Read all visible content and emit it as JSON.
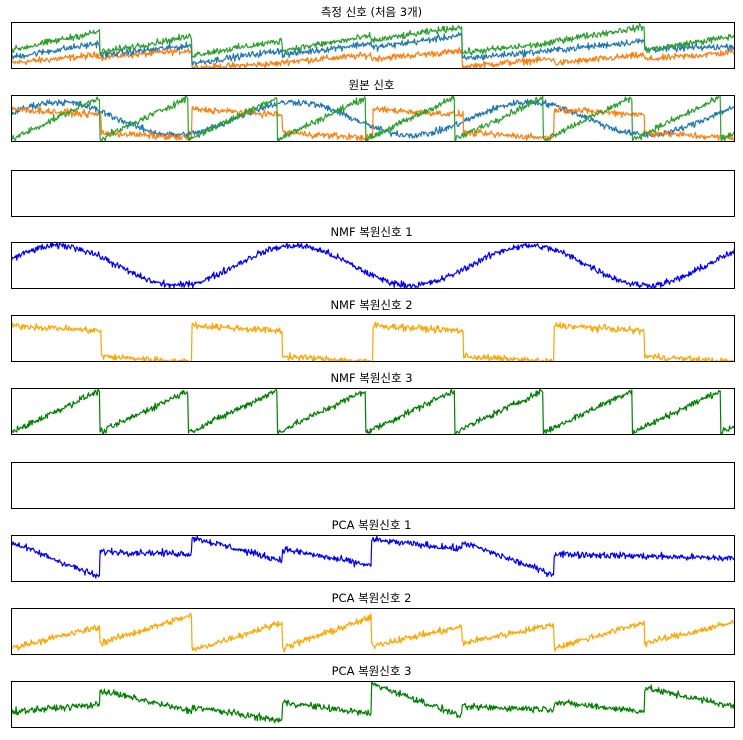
{
  "chart_data": {
    "type": "line",
    "x_range": [
      0,
      2000
    ],
    "axes_ticks": "none",
    "panels": [
      {
        "title": "측정 신호 (처음 3개)",
        "series": [
          {
            "color": "#ff7f0e",
            "segment_values": [
              [
                0.13,
                0.3
              ],
              [
                0.25,
                0.4
              ],
              [
                0.02,
                0.12
              ],
              [
                0.15,
                0.3
              ],
              [
                0.22,
                0.38
              ],
              [
                0.05,
                0.22
              ],
              [
                0.12,
                0.3
              ],
              [
                0.2,
                0.36
              ]
            ]
          },
          {
            "color": "#1f77b4",
            "segment_values": [
              [
                0.25,
                0.55
              ],
              [
                0.3,
                0.5
              ],
              [
                0.12,
                0.4
              ],
              [
                0.3,
                0.55
              ],
              [
                0.45,
                0.72
              ],
              [
                0.22,
                0.4
              ],
              [
                0.4,
                0.6
              ],
              [
                0.42,
                0.48
              ]
            ]
          },
          {
            "color": "#2ca02c",
            "segment_values": [
              [
                0.4,
                0.8
              ],
              [
                0.35,
                0.7
              ],
              [
                0.3,
                0.6
              ],
              [
                0.4,
                0.7
              ],
              [
                0.6,
                0.9
              ],
              [
                0.35,
                0.55
              ],
              [
                0.6,
                0.9
              ],
              [
                0.4,
                0.7
              ]
            ]
          }
        ]
      },
      {
        "title": "원본 신호",
        "series": [
          {
            "color": "#1f77b4",
            "wave": "sine",
            "range": [
              0.15,
              0.85
            ],
            "period": 650
          },
          {
            "color": "#ff7f0e",
            "wave": "square",
            "levels": [
              0.2,
              0.7
            ],
            "period": 500
          },
          {
            "color": "#2ca02c",
            "wave": "sawtooth",
            "range": [
              0.05,
              0.95
            ],
            "period": 245
          }
        ]
      },
      {
        "title": "",
        "series": []
      },
      {
        "title": "NMF 복원신호 1",
        "series": [
          {
            "color": "#0000ff",
            "wave": "sine",
            "range": [
              0.08,
              0.92
            ],
            "period": 650
          }
        ]
      },
      {
        "title": "NMF 복원신호 2",
        "series": [
          {
            "color": "#ffa500",
            "wave": "square",
            "levels": [
              0.12,
              0.78
            ],
            "period": 500
          }
        ]
      },
      {
        "title": "NMF 복원신호 3",
        "series": [
          {
            "color": "#008000",
            "wave": "sawtooth",
            "range": [
              0.05,
              0.95
            ],
            "period": 245
          }
        ]
      },
      {
        "title": "",
        "series": []
      },
      {
        "title": "PCA 복원신호 1",
        "series": [
          {
            "color": "#0000ff",
            "segment_values": [
              [
                0.85,
                0.1
              ],
              [
                0.65,
                0.6
              ],
              [
                0.95,
                0.45
              ],
              [
                0.7,
                0.35
              ],
              [
                0.9,
                0.7
              ],
              [
                0.85,
                0.15
              ],
              [
                0.6,
                0.55
              ],
              [
                0.55,
                0.5
              ]
            ]
          }
        ]
      },
      {
        "title": "PCA 복원신호 2",
        "series": [
          {
            "color": "#ffa500",
            "segment_values": [
              [
                0.15,
                0.6
              ],
              [
                0.25,
                0.85
              ],
              [
                0.1,
                0.7
              ],
              [
                0.15,
                0.8
              ],
              [
                0.2,
                0.6
              ],
              [
                0.25,
                0.65
              ],
              [
                0.15,
                0.7
              ],
              [
                0.25,
                0.7
              ]
            ]
          }
        ]
      },
      {
        "title": "PCA 복원신호 3",
        "series": [
          {
            "color": "#008000",
            "segment_values": [
              [
                0.35,
                0.5
              ],
              [
                0.8,
                0.35
              ],
              [
                0.45,
                0.15
              ],
              [
                0.55,
                0.3
              ],
              [
                0.95,
                0.25
              ],
              [
                0.45,
                0.4
              ],
              [
                0.55,
                0.35
              ],
              [
                0.85,
                0.45
              ]
            ]
          }
        ]
      }
    ]
  }
}
